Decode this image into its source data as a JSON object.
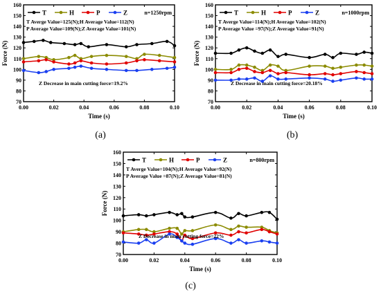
{
  "chart_data": [
    {
      "type": "line",
      "caption": "(a)",
      "speed_label": "n=1250rpm",
      "xlabel": "Time (s)",
      "ylabel": "Force (N)",
      "xlim": [
        0,
        0.1
      ],
      "ylim": [
        70,
        160
      ],
      "xticks": [
        "0.00",
        "0.02",
        "0.04",
        "0.06",
        "0.08",
        "0.10"
      ],
      "yticks": [
        "70",
        "80",
        "90",
        "100",
        "110",
        "120",
        "130",
        "140",
        "150",
        "160"
      ],
      "legend_labels": [
        "T",
        "H",
        "P",
        "Z"
      ],
      "annotations": [
        "T Averge Value=125(N);H Average Value=112(N)",
        "P Average Value=109(N);Z Average Value=101(N)"
      ],
      "note": "Z Decrease in main cutting force=19.2%",
      "series": [
        {
          "name": "T",
          "color": "#000000",
          "x": [
            0.0,
            0.007,
            0.013,
            0.018,
            0.027,
            0.034,
            0.038,
            0.043,
            0.055,
            0.068,
            0.075,
            0.085,
            0.095,
            0.1
          ],
          "y": [
            125,
            126,
            127,
            125,
            124,
            123,
            124,
            121,
            123,
            121,
            123,
            124,
            126,
            122
          ]
        },
        {
          "name": "H",
          "color": "#8b8b00",
          "x": [
            0.0,
            0.01,
            0.015,
            0.02,
            0.03,
            0.034,
            0.038,
            0.045,
            0.055,
            0.068,
            0.075,
            0.08,
            0.09,
            0.1
          ],
          "y": [
            110,
            112,
            111,
            109,
            111,
            113,
            110,
            112,
            113,
            112,
            110,
            114,
            113,
            111
          ]
        },
        {
          "name": "P",
          "color": "#e00000",
          "x": [
            0.0,
            0.01,
            0.015,
            0.02,
            0.03,
            0.034,
            0.038,
            0.045,
            0.055,
            0.068,
            0.075,
            0.08,
            0.09,
            0.1
          ],
          "y": [
            107,
            108,
            109,
            107,
            105,
            106,
            108,
            106,
            105,
            106,
            108,
            109,
            108,
            107
          ]
        },
        {
          "name": "Z",
          "color": "#1a3ff0",
          "x": [
            0.0,
            0.01,
            0.015,
            0.02,
            0.03,
            0.034,
            0.038,
            0.045,
            0.055,
            0.068,
            0.075,
            0.085,
            0.095,
            0.1
          ],
          "y": [
            99,
            97,
            98,
            100,
            101,
            102,
            103,
            101,
            100,
            99,
            99,
            100,
            101,
            102
          ]
        }
      ]
    },
    {
      "type": "line",
      "caption": "(b)",
      "speed_label": "n=1000rpm",
      "xlabel": "Time (s)",
      "ylabel": "Force (N)",
      "xlim": [
        0,
        0.1
      ],
      "ylim": [
        70,
        160
      ],
      "xticks": [
        "0.00",
        "0.02",
        "0.04",
        "0.06",
        "0.08",
        "0.10"
      ],
      "yticks": [
        "70",
        "80",
        "90",
        "100",
        "110",
        "120",
        "130",
        "140",
        "150",
        "160"
      ],
      "legend_labels": [
        "T",
        "H",
        "P",
        "Z"
      ],
      "annotations": [
        "T Averge Value=114(N);H Average Value=102(N)",
        "P Average Value =97(N);Z Average Value=91(N)"
      ],
      "note": "Z Decrease in main cutting force=20.18%",
      "series": [
        {
          "name": "T",
          "color": "#000000",
          "x": [
            0.0,
            0.01,
            0.015,
            0.02,
            0.025,
            0.03,
            0.035,
            0.04,
            0.045,
            0.06,
            0.07,
            0.075,
            0.08,
            0.09,
            0.095,
            0.1
          ],
          "y": [
            115,
            115,
            118,
            120,
            117,
            115,
            118,
            112,
            114,
            111,
            114,
            111,
            115,
            114,
            116,
            115
          ]
        },
        {
          "name": "H",
          "color": "#8b8b00",
          "x": [
            0.0,
            0.01,
            0.015,
            0.02,
            0.025,
            0.03,
            0.035,
            0.04,
            0.045,
            0.06,
            0.07,
            0.075,
            0.08,
            0.09,
            0.095,
            0.1
          ],
          "y": [
            100,
            100,
            104,
            104,
            102,
            99,
            104,
            103,
            99,
            103,
            103,
            101,
            102,
            104,
            104,
            103
          ]
        },
        {
          "name": "P",
          "color": "#e00000",
          "x": [
            0.0,
            0.01,
            0.015,
            0.02,
            0.025,
            0.03,
            0.035,
            0.04,
            0.045,
            0.06,
            0.07,
            0.075,
            0.08,
            0.09,
            0.095,
            0.1
          ],
          "y": [
            97,
            97,
            100,
            101,
            98,
            97,
            99,
            96,
            97,
            95,
            96,
            95,
            96,
            98,
            97,
            96
          ]
        },
        {
          "name": "Z",
          "color": "#1a3ff0",
          "x": [
            0.0,
            0.01,
            0.015,
            0.02,
            0.025,
            0.03,
            0.035,
            0.04,
            0.045,
            0.06,
            0.07,
            0.075,
            0.08,
            0.09,
            0.095,
            0.1
          ],
          "y": [
            90,
            90,
            91,
            91,
            92,
            89,
            94,
            91,
            91,
            92,
            91,
            89,
            90,
            92,
            91,
            91
          ]
        }
      ]
    },
    {
      "type": "line",
      "caption": "(c)",
      "speed_label": "n=800rpm",
      "xlabel": "Time (s)",
      "ylabel": "Force (N)",
      "xlim": [
        0,
        0.1
      ],
      "ylim": [
        70,
        160
      ],
      "xticks": [
        "0.00",
        "0.02",
        "0.04",
        "0.06",
        "0.08",
        "0.10"
      ],
      "yticks": [
        "70",
        "80",
        "90",
        "100",
        "110",
        "120",
        "130",
        "140",
        "150",
        "160"
      ],
      "legend_labels": [
        "T",
        "H",
        "P",
        "Z"
      ],
      "annotations": [
        "T Averge Value=104(N);H Average Value=92(N)",
        "P Average Value =87(N);Z Average Value=81(N)"
      ],
      "note": "Z Decrease in main cutting force=22%",
      "series": [
        {
          "name": "T",
          "color": "#000000",
          "x": [
            0.0,
            0.01,
            0.015,
            0.02,
            0.03,
            0.035,
            0.038,
            0.04,
            0.045,
            0.06,
            0.07,
            0.075,
            0.08,
            0.09,
            0.095,
            0.1
          ],
          "y": [
            104,
            105,
            104,
            105,
            107,
            105,
            106,
            103,
            103,
            107,
            102,
            106,
            104,
            107,
            107,
            101
          ]
        },
        {
          "name": "H",
          "color": "#8b8b00",
          "x": [
            0.0,
            0.01,
            0.015,
            0.02,
            0.03,
            0.035,
            0.038,
            0.04,
            0.045,
            0.06,
            0.07,
            0.075,
            0.08,
            0.09,
            0.095,
            0.1
          ],
          "y": [
            90,
            92,
            92,
            90,
            93,
            93,
            88,
            91,
            91,
            96,
            92,
            95,
            94,
            94,
            91,
            89
          ]
        },
        {
          "name": "P",
          "color": "#e00000",
          "x": [
            0.0,
            0.01,
            0.015,
            0.02,
            0.03,
            0.035,
            0.038,
            0.04,
            0.045,
            0.06,
            0.07,
            0.075,
            0.08,
            0.09,
            0.095,
            0.1
          ],
          "y": [
            89,
            88,
            87,
            88,
            90,
            88,
            82,
            87,
            84,
            89,
            87,
            90,
            89,
            92,
            90,
            88
          ]
        },
        {
          "name": "Z",
          "color": "#1a3ff0",
          "x": [
            0.0,
            0.01,
            0.015,
            0.02,
            0.03,
            0.035,
            0.038,
            0.04,
            0.045,
            0.06,
            0.07,
            0.075,
            0.08,
            0.09,
            0.095,
            0.1
          ],
          "y": [
            81,
            80,
            83,
            80,
            88,
            85,
            82,
            80,
            79,
            84,
            80,
            83,
            80,
            82,
            81,
            80
          ]
        }
      ]
    }
  ]
}
